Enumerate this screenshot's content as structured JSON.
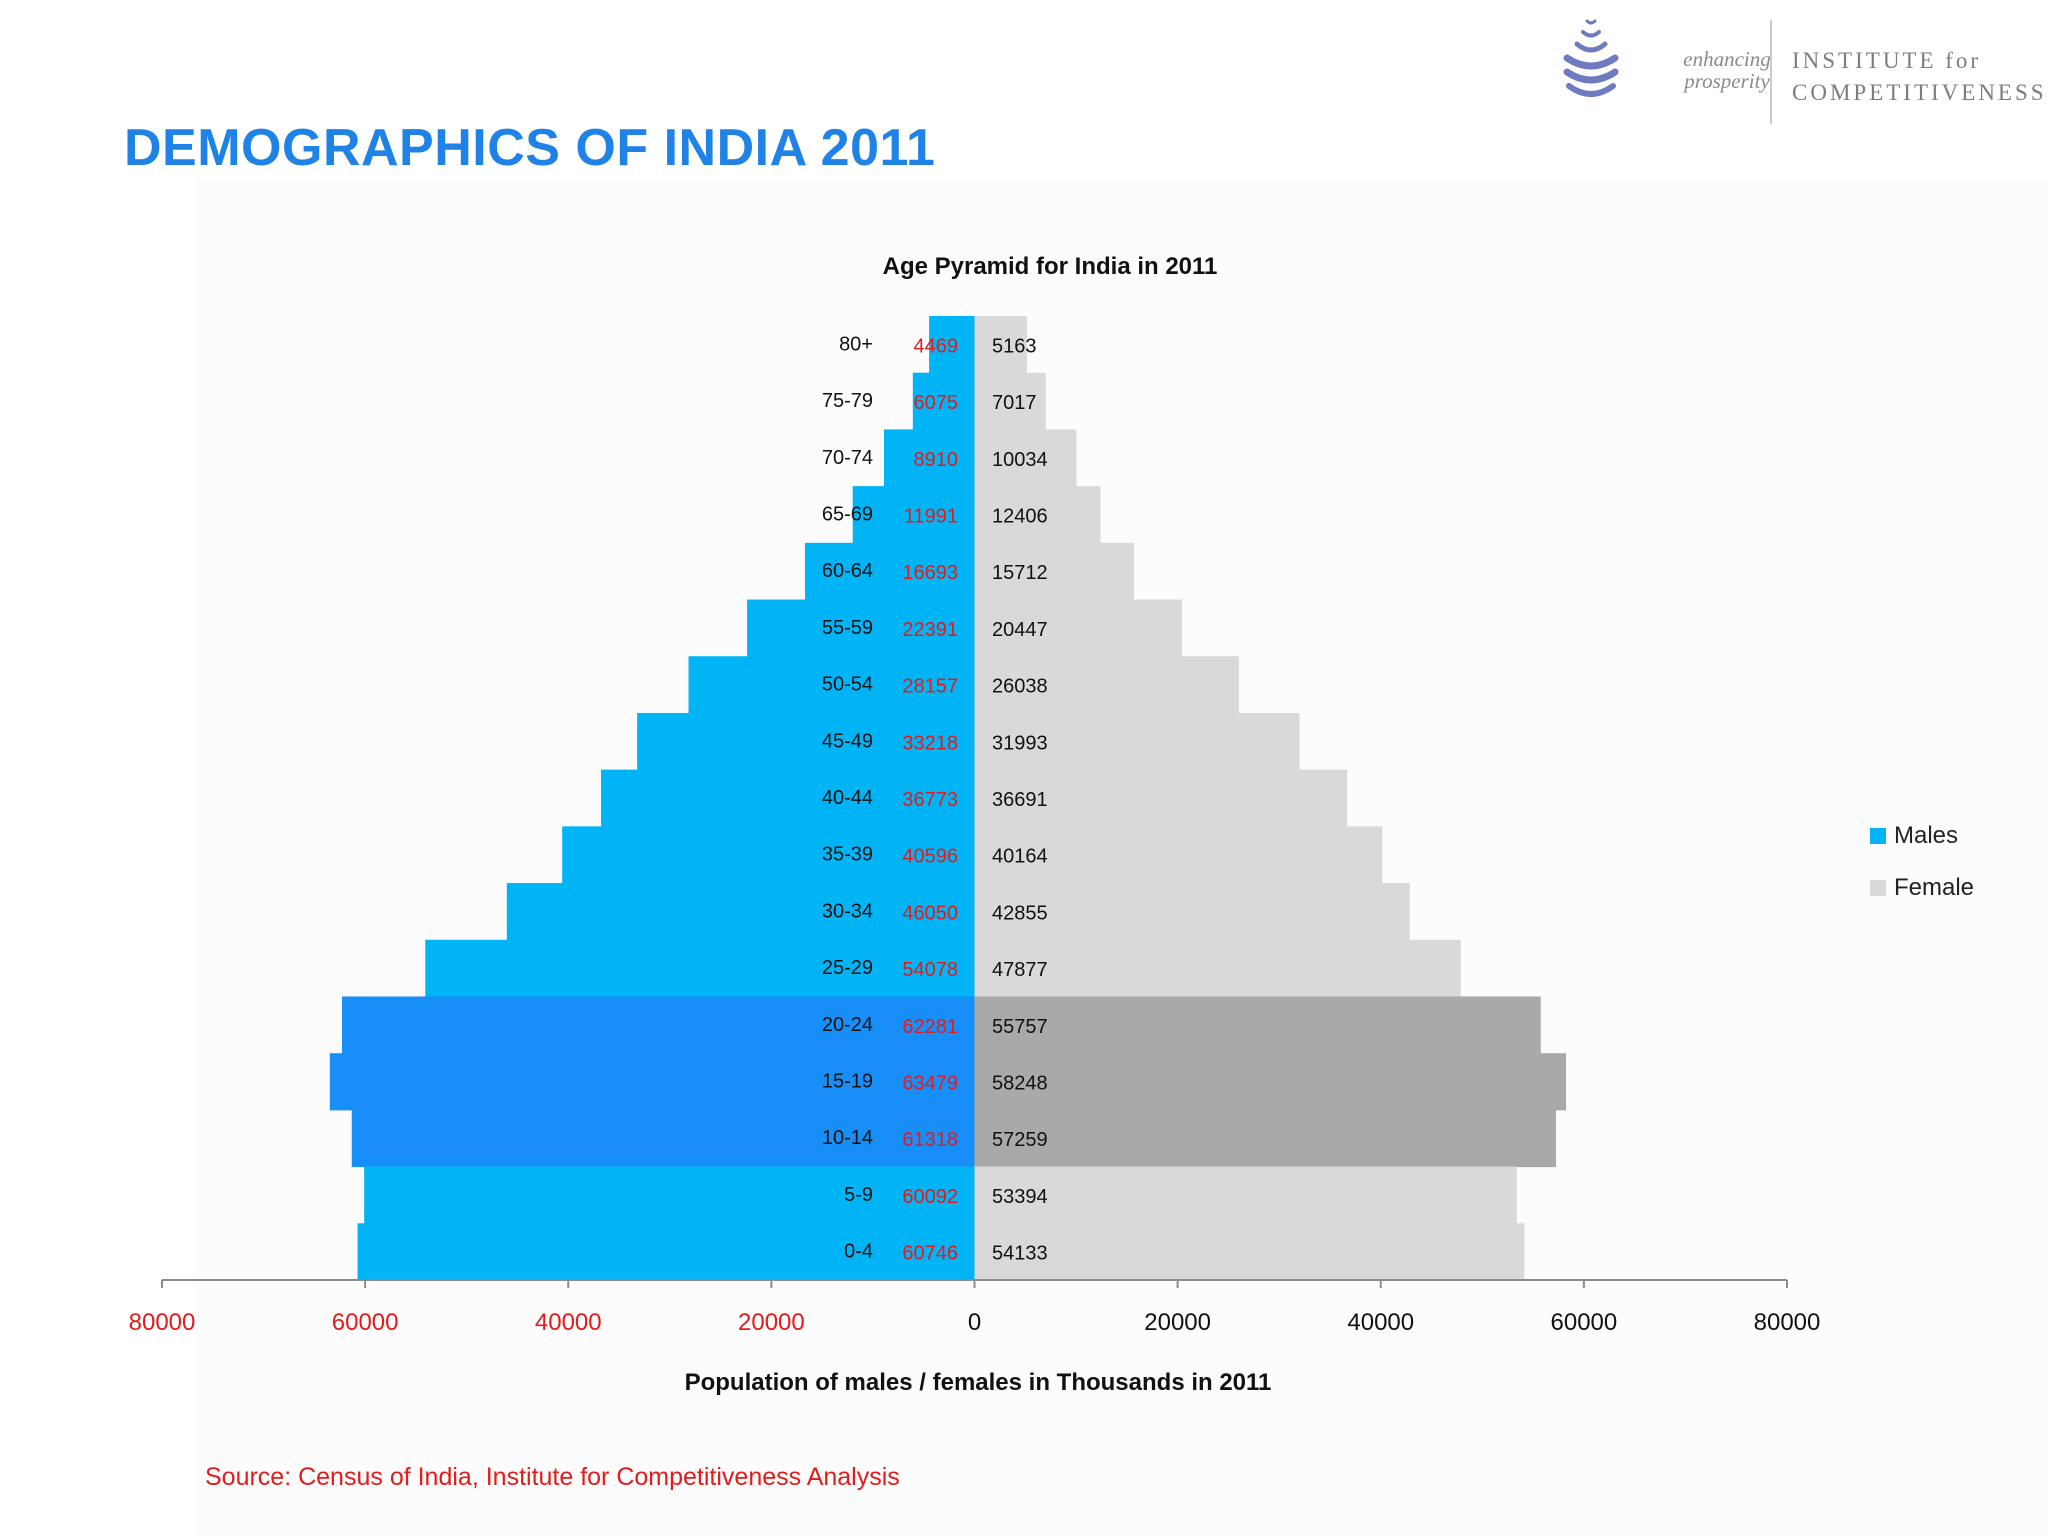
{
  "slide": {
    "title": "DEMOGRAPHICS OF INDIA 2011",
    "source": "Source: Census of India,  Institute for Competitiveness Analysis"
  },
  "logo": {
    "tagline_line1": "enhancing",
    "tagline_line2": "prosperity",
    "org_line1": "INSTITUTE for",
    "org_line2": "COMPETITIVENESS",
    "color": "#6f7bc0"
  },
  "chart_data": {
    "type": "bar",
    "orientation": "horizontal-population-pyramid",
    "title": "Age Pyramid for India in 2011",
    "xlabel": "Population of males / females in Thousands in 2011",
    "ylabel": "",
    "categories": [
      "80+",
      "75-79",
      "70-74",
      "65-69",
      "60-64",
      "55-59",
      "50-54",
      "45-49",
      "40-44",
      "35-39",
      "30-34",
      "25-29",
      "20-24",
      "15-19",
      "10-14",
      "5-9",
      "0-4"
    ],
    "series": [
      {
        "name": "Males",
        "side": "left",
        "color": "#00b4f5",
        "highlight_color": "#188ff8",
        "label_color": "#e31b1b",
        "values": [
          4469,
          6075,
          8910,
          11991,
          16693,
          22391,
          28157,
          33218,
          36773,
          40596,
          46050,
          54078,
          62281,
          63479,
          61318,
          60092,
          60746
        ]
      },
      {
        "name": "Female",
        "side": "right",
        "color": "#d9d8da",
        "highlight_color": "#a9a8aa",
        "label_color": "#111111",
        "values": [
          5163,
          7017,
          10034,
          12406,
          15712,
          20447,
          26038,
          31993,
          36691,
          40164,
          42855,
          47877,
          55757,
          58248,
          57259,
          53394,
          54133
        ]
      }
    ],
    "highlighted_categories": [
      "20-24",
      "15-19",
      "10-14"
    ],
    "xlim": [
      -80000,
      80000
    ],
    "x_ticks": [
      -80000,
      -60000,
      -40000,
      -20000,
      0,
      20000,
      40000,
      60000,
      80000
    ],
    "x_tick_labels": [
      "80000",
      "60000",
      "40000",
      "20000",
      "0",
      "20000",
      "40000",
      "60000",
      "80000"
    ],
    "negative_tick_color": "#e31b1b",
    "positive_tick_color": "#111111",
    "grid": false,
    "legend": "right"
  }
}
